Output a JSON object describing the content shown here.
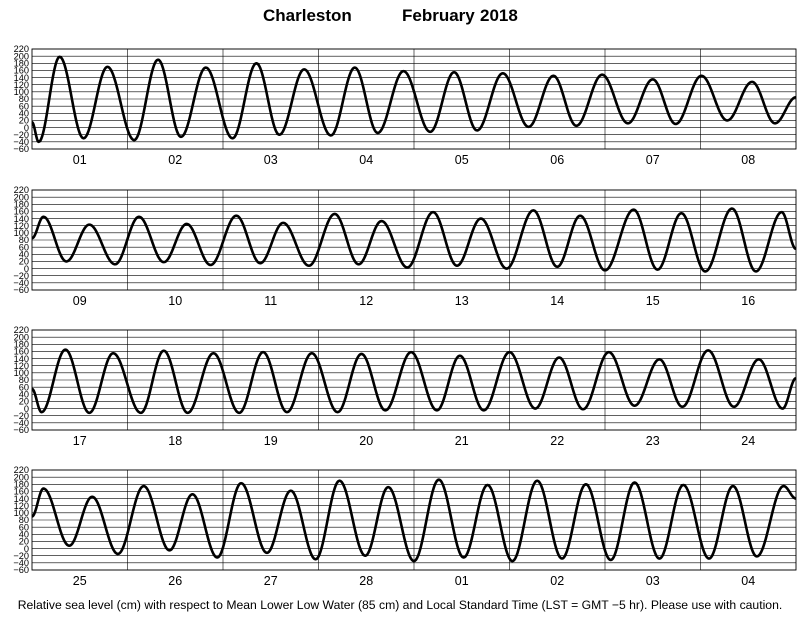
{
  "header": {
    "station": "Charleston",
    "month": "February",
    "year": "2018"
  },
  "footer": {
    "caption": "Relative sea level (cm) with respect to Mean Lower Low Water (85 cm) and Local Standard Time (LST = GMT −5 hr). Please use with caution."
  },
  "chart_data": {
    "type": "line",
    "ylim": [
      -60,
      220
    ],
    "yticks": [
      "220",
      "200",
      "180",
      "160",
      "140",
      "120",
      "100",
      "80",
      "60",
      "40",
      "20",
      "0",
      "−20",
      "−40",
      "−60"
    ],
    "grid": true,
    "series_color": "#000000",
    "panels": [
      {
        "days": [
          "01",
          "02",
          "03",
          "04",
          "05",
          "06",
          "07",
          "08"
        ],
        "start_value": 15,
        "end_value": 85,
        "extremes": [
          [
            0.07,
            -40
          ],
          [
            0.29,
            198
          ],
          [
            0.54,
            -30
          ],
          [
            0.79,
            170
          ],
          [
            1.07,
            -35
          ],
          [
            1.32,
            190
          ],
          [
            1.56,
            -26
          ],
          [
            1.82,
            168
          ],
          [
            2.1,
            -30
          ],
          [
            2.35,
            180
          ],
          [
            2.59,
            -20
          ],
          [
            2.85,
            163
          ],
          [
            3.13,
            -22
          ],
          [
            3.38,
            168
          ],
          [
            3.62,
            -15
          ],
          [
            3.89,
            158
          ],
          [
            4.17,
            -12
          ],
          [
            4.42,
            155
          ],
          [
            4.66,
            -8
          ],
          [
            4.93,
            152
          ],
          [
            5.2,
            2
          ],
          [
            5.46,
            145
          ],
          [
            5.7,
            5
          ],
          [
            5.97,
            148
          ],
          [
            6.24,
            12
          ],
          [
            6.5,
            135
          ],
          [
            6.74,
            10
          ],
          [
            7.01,
            145
          ],
          [
            7.28,
            20
          ],
          [
            7.54,
            128
          ],
          [
            7.78,
            12
          ]
        ]
      },
      {
        "days": [
          "09",
          "10",
          "11",
          "12",
          "13",
          "14",
          "15",
          "16"
        ],
        "start_value": 85,
        "end_value": 55,
        "extremes": [
          [
            0.12,
            145
          ],
          [
            0.36,
            20
          ],
          [
            0.6,
            123
          ],
          [
            0.87,
            12
          ],
          [
            1.12,
            145
          ],
          [
            1.38,
            18
          ],
          [
            1.62,
            125
          ],
          [
            1.87,
            10
          ],
          [
            2.14,
            148
          ],
          [
            2.39,
            15
          ],
          [
            2.63,
            128
          ],
          [
            2.9,
            8
          ],
          [
            3.17,
            153
          ],
          [
            3.42,
            12
          ],
          [
            3.66,
            133
          ],
          [
            3.93,
            3
          ],
          [
            4.2,
            158
          ],
          [
            4.45,
            8
          ],
          [
            4.7,
            140
          ],
          [
            4.97,
            0
          ],
          [
            5.25,
            163
          ],
          [
            5.5,
            5
          ],
          [
            5.74,
            148
          ],
          [
            6.0,
            -5
          ],
          [
            6.3,
            165
          ],
          [
            6.55,
            -3
          ],
          [
            6.8,
            155
          ],
          [
            7.05,
            -8
          ],
          [
            7.33,
            168
          ],
          [
            7.58,
            -8
          ],
          [
            7.85,
            158
          ]
        ]
      },
      {
        "days": [
          "17",
          "18",
          "19",
          "20",
          "21",
          "22",
          "23",
          "24"
        ],
        "start_value": 55,
        "end_value": 85,
        "extremes": [
          [
            0.1,
            -10
          ],
          [
            0.35,
            165
          ],
          [
            0.6,
            -12
          ],
          [
            0.85,
            155
          ],
          [
            1.14,
            -12
          ],
          [
            1.38,
            162
          ],
          [
            1.63,
            -12
          ],
          [
            1.9,
            155
          ],
          [
            2.17,
            -12
          ],
          [
            2.42,
            158
          ],
          [
            2.67,
            -10
          ],
          [
            2.93,
            155
          ],
          [
            3.2,
            -10
          ],
          [
            3.45,
            153
          ],
          [
            3.7,
            -5
          ],
          [
            3.97,
            158
          ],
          [
            4.24,
            -5
          ],
          [
            4.48,
            148
          ],
          [
            4.73,
            -5
          ],
          [
            5.0,
            158
          ],
          [
            5.27,
            0
          ],
          [
            5.52,
            143
          ],
          [
            5.77,
            -2
          ],
          [
            6.04,
            158
          ],
          [
            6.31,
            8
          ],
          [
            6.57,
            138
          ],
          [
            6.81,
            5
          ],
          [
            7.08,
            163
          ],
          [
            7.35,
            5
          ],
          [
            7.61,
            138
          ],
          [
            7.86,
            0
          ]
        ]
      },
      {
        "days": [
          "25",
          "26",
          "27",
          "28",
          "01",
          "02",
          "03",
          "04"
        ],
        "start_value": 90,
        "end_value": 140,
        "extremes": [
          [
            0.12,
            168
          ],
          [
            0.39,
            8
          ],
          [
            0.63,
            145
          ],
          [
            0.9,
            -15
          ],
          [
            1.17,
            175
          ],
          [
            1.44,
            -5
          ],
          [
            1.68,
            152
          ],
          [
            1.94,
            -25
          ],
          [
            2.19,
            183
          ],
          [
            2.46,
            -12
          ],
          [
            2.71,
            162
          ],
          [
            2.97,
            -30
          ],
          [
            3.22,
            190
          ],
          [
            3.49,
            -20
          ],
          [
            3.73,
            172
          ],
          [
            4.0,
            -35
          ],
          [
            4.26,
            193
          ],
          [
            4.52,
            -25
          ],
          [
            4.77,
            178
          ],
          [
            5.03,
            -35
          ],
          [
            5.29,
            190
          ],
          [
            5.55,
            -28
          ],
          [
            5.8,
            180
          ],
          [
            6.06,
            -32
          ],
          [
            6.31,
            185
          ],
          [
            6.57,
            -28
          ],
          [
            6.82,
            178
          ],
          [
            7.09,
            -28
          ],
          [
            7.34,
            175
          ],
          [
            7.59,
            -22
          ],
          [
            7.87,
            175
          ]
        ]
      }
    ]
  }
}
